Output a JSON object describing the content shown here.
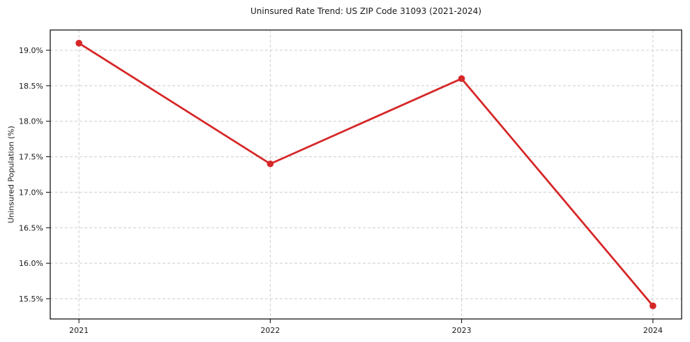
{
  "chart_data": {
    "type": "line",
    "title": "Uninsured Rate Trend: US ZIP Code 31093 (2021-2024)",
    "xlabel": "",
    "ylabel": "Uninsured Population (%)",
    "x": [
      2021,
      2022,
      2023,
      2024
    ],
    "x_tick_labels": [
      "2021",
      "2022",
      "2023",
      "2024"
    ],
    "series": [
      {
        "name": "Uninsured rate",
        "values": [
          19.1,
          17.4,
          18.6,
          15.4
        ]
      }
    ],
    "y_ticks": [
      15.5,
      16.0,
      16.5,
      17.0,
      17.5,
      18.0,
      18.5,
      19.0
    ],
    "y_tick_labels": [
      "15.5%",
      "16.0%",
      "16.5%",
      "17.0%",
      "17.5%",
      "18.0%",
      "18.5%",
      "19.0%"
    ],
    "ylim": [
      15.215,
      19.285
    ],
    "xlim": [
      2020.85,
      2024.15
    ],
    "grid": true,
    "grid_style": "dashed",
    "legend_position": "none",
    "colors": {
      "line": "#d62728",
      "marker": "#d62728",
      "grid": "#cccccc",
      "spine": "#000000",
      "text": "#1a1a1a",
      "background": "#ffffff"
    }
  }
}
